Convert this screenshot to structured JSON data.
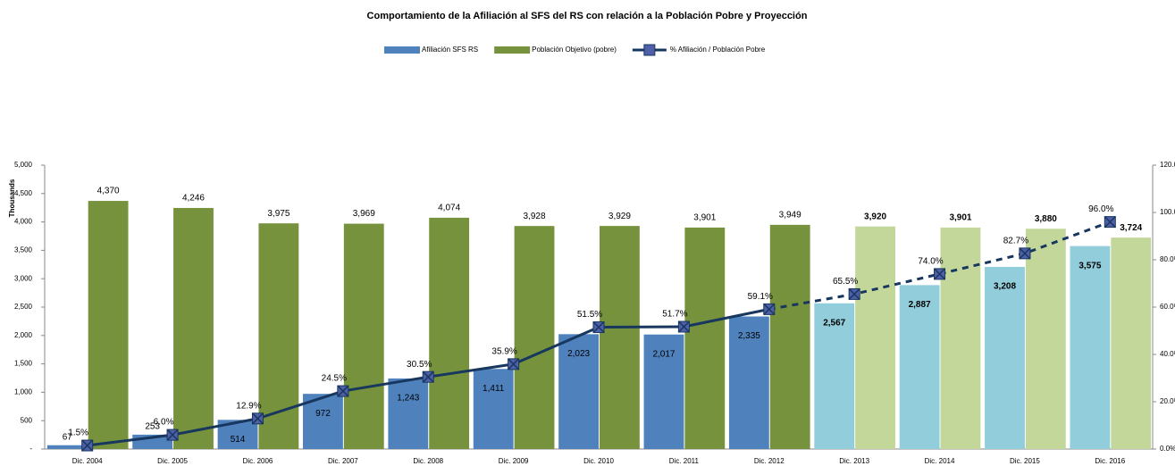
{
  "chart_data": {
    "type": "bar-line",
    "title": "Comportamiento de la Afiliación al SFS del RS con relación  a la Población Pobre y Proyección",
    "ylabel": "Thousands",
    "categories": [
      "Dic. 2004",
      "Dic. 2005",
      "Dic. 2006",
      "Dic. 2007",
      "Dic. 2008",
      "Dic. 2009",
      "Dic. 2010",
      "Dic. 2011",
      "Dic. 2012",
      "Dic. 2013",
      "Dic. 2014",
      "Dic. 2015",
      "Dic. 2016"
    ],
    "projection_from": 9,
    "series": [
      {
        "name": "Afiliación  SFS RS",
        "type": "bar",
        "color": "#4f81bd",
        "projection_color": "#92cddc",
        "values": [
          67,
          253,
          514,
          972,
          1243,
          1411,
          2023,
          2017,
          2335,
          2567,
          2887,
          3208,
          3575
        ],
        "value_labels": [
          "67",
          "253",
          "514",
          "972",
          "1,243",
          "1,411",
          "2,023",
          "2,017",
          "2,335",
          "2,567",
          "2,887",
          "3,208",
          "3,575"
        ]
      },
      {
        "name": "Población Objetivo (pobre)",
        "type": "bar",
        "color": "#76923c",
        "projection_color": "#c4d79b",
        "values": [
          4370,
          4246,
          3975,
          3969,
          4074,
          3928,
          3929,
          3901,
          3949,
          3920,
          3901,
          3880,
          3724
        ],
        "value_labels": [
          "4,370",
          "4,246",
          "3,975",
          "3,969",
          "4,074",
          "3,928",
          "3,929",
          "3,901",
          "3,949",
          "3,920",
          "3,901",
          "3,880",
          "3,724"
        ]
      },
      {
        "name": "% Afiliación  / Población Pobre",
        "type": "line",
        "axis": "y2",
        "color": "#17375e",
        "marker_color": "#4f5fa8",
        "values": [
          1.5,
          6.0,
          12.9,
          24.5,
          30.5,
          35.9,
          51.5,
          51.7,
          59.1,
          65.5,
          74.0,
          82.7,
          96.0
        ],
        "value_labels": [
          "1.5%",
          "6.0%",
          "12.9%",
          "24.5%",
          "30.5%",
          "35.9%",
          "51.5%",
          "51.7%",
          "59.1%",
          "65.5%",
          "74.0%",
          "82.7%",
          "96.0%"
        ]
      }
    ],
    "ylim": [
      0,
      5000
    ],
    "yticks": [
      {
        "value": 0,
        "label": "-"
      },
      500,
      {
        "value": 1000,
        "label": "1,000"
      },
      {
        "value": 1500,
        "label": "1,500"
      },
      {
        "value": 2000,
        "label": "2,000"
      },
      {
        "value": 2500,
        "label": "2,500"
      },
      {
        "value": 3000,
        "label": "3,000"
      },
      {
        "value": 3500,
        "label": "3,500"
      },
      {
        "value": 4000,
        "label": "4,000"
      },
      {
        "value": 4500,
        "label": "4,500"
      },
      {
        "value": 5000,
        "label": "5,000"
      }
    ],
    "y2lim": [
      0,
      120
    ],
    "y2ticks": [
      {
        "value": 0,
        "label": "0.0%"
      },
      {
        "value": 20,
        "label": "20.0%"
      },
      {
        "value": 40,
        "label": "40.0%"
      },
      {
        "value": 60,
        "label": "60.0%"
      },
      {
        "value": 80,
        "label": "80.0%"
      },
      {
        "value": 100,
        "label": "100.0%"
      },
      {
        "value": 120,
        "label": "120.0%"
      }
    ]
  }
}
